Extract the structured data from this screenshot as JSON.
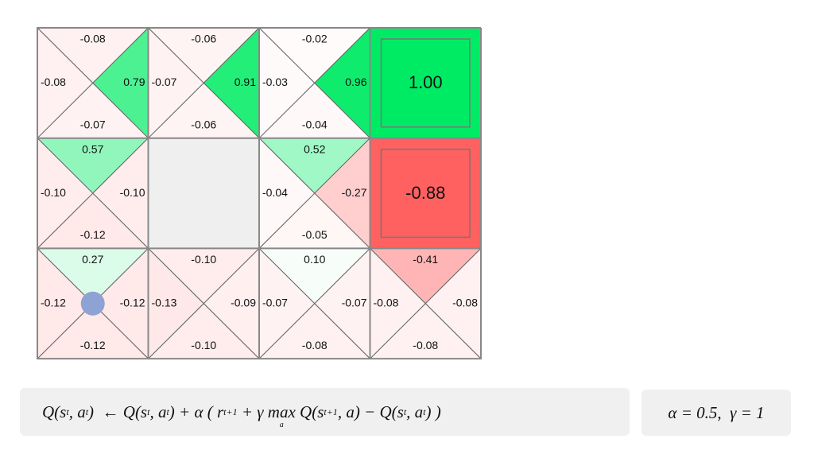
{
  "grid": {
    "rows": [
      [
        {
          "kind": "q",
          "up": "-0.08",
          "right": "0.79",
          "down": "-0.07",
          "left": "-0.08"
        },
        {
          "kind": "q",
          "up": "-0.06",
          "right": "0.91",
          "down": "-0.06",
          "left": "-0.07"
        },
        {
          "kind": "q",
          "up": "-0.02",
          "right": "0.96",
          "down": "-0.04",
          "left": "-0.03"
        },
        {
          "kind": "terminal",
          "value": "1.00"
        }
      ],
      [
        {
          "kind": "q",
          "up": "0.57",
          "right": "-0.10",
          "down": "-0.12",
          "left": "-0.10"
        },
        {
          "kind": "wall"
        },
        {
          "kind": "q",
          "up": "0.52",
          "right": "-0.27",
          "down": "-0.05",
          "left": "-0.04"
        },
        {
          "kind": "terminal",
          "value": "-0.88"
        }
      ],
      [
        {
          "kind": "q",
          "up": "0.27",
          "right": "-0.12",
          "down": "-0.12",
          "left": "-0.12",
          "agent": true
        },
        {
          "kind": "q",
          "up": "-0.10",
          "right": "-0.09",
          "down": "-0.10",
          "left": "-0.13"
        },
        {
          "kind": "q",
          "up": "0.10",
          "right": "-0.07",
          "down": "-0.08",
          "left": "-0.07"
        },
        {
          "kind": "q",
          "up": "-0.41",
          "right": "-0.08",
          "down": "-0.08",
          "left": "-0.08"
        }
      ]
    ]
  },
  "formula": {
    "parts": [
      {
        "text": "Q(s"
      },
      {
        "text": "t",
        "script": "sub"
      },
      {
        "text": ", a"
      },
      {
        "text": "t",
        "script": "sub"
      },
      {
        "text": ")  ← Q(s"
      },
      {
        "text": "t",
        "script": "sub"
      },
      {
        "text": ", a"
      },
      {
        "text": "t",
        "script": "sub"
      },
      {
        "text": ") + α ( r"
      },
      {
        "text": "t+1",
        "script": "sub"
      },
      {
        "text": " + γ max"
      },
      {
        "text": "a",
        "script": "under"
      },
      {
        "text": " Q(s"
      },
      {
        "text": "t+1",
        "script": "sub"
      },
      {
        "text": ", a) − Q(s"
      },
      {
        "text": "t",
        "script": "sub"
      },
      {
        "text": ", a"
      },
      {
        "text": "t",
        "script": "sub"
      },
      {
        "text": ") )"
      }
    ]
  },
  "params": "α = 0.5,  γ = 1"
}
